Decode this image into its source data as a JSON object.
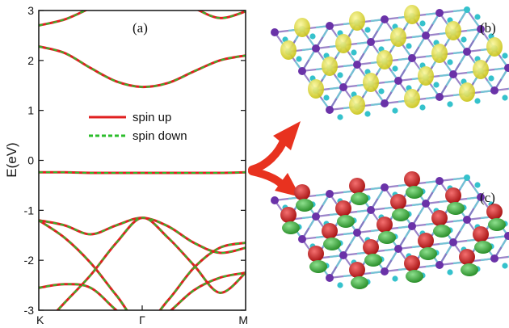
{
  "chart_data": {
    "type": "line",
    "panel_label": "(a)",
    "ylabel": "E(eV)",
    "ylim": [
      -3,
      3
    ],
    "yticks": [
      "3",
      "2",
      "1",
      "0",
      "-1",
      "-2",
      "-3"
    ],
    "xticks": [
      "K",
      "Γ",
      "M"
    ],
    "legend": [
      {
        "label": "spin up",
        "color": "#e02020",
        "style": "solid"
      },
      {
        "label": "spin down",
        "color": "#2bbd2b",
        "style": "dashed"
      }
    ],
    "x": [
      0,
      0.125,
      0.25,
      0.375,
      0.5,
      0.625,
      0.75,
      0.875,
      1
    ],
    "bands": [
      {
        "y": [
          2.28,
          2.15,
          1.85,
          1.58,
          1.47,
          1.55,
          1.78,
          2.0,
          2.1
        ]
      },
      {
        "y": [
          2.7,
          2.82,
          3.05,
          3.3,
          3.4,
          3.3,
          3.05,
          2.85,
          2.98
        ]
      },
      {
        "y": [
          -0.24,
          -0.24,
          -0.25,
          -0.25,
          -0.25,
          -0.25,
          -0.25,
          -0.25,
          -0.24
        ]
      },
      {
        "y": [
          -1.2,
          -1.3,
          -1.48,
          -1.3,
          -1.15,
          -1.32,
          -1.65,
          -1.85,
          -1.75
        ]
      },
      {
        "y": [
          -1.2,
          -1.55,
          -2.05,
          -2.7,
          -3.3,
          -2.8,
          -2.15,
          -1.75,
          -1.65
        ]
      },
      {
        "y": [
          -3.4,
          -2.85,
          -2.3,
          -1.65,
          -1.15,
          -1.55,
          -2.1,
          -2.65,
          -2.25
        ]
      },
      {
        "y": [
          -2.55,
          -2.48,
          -2.55,
          -3.0,
          -3.4,
          -3.05,
          -2.6,
          -2.35,
          -2.25
        ]
      }
    ]
  },
  "panels": {
    "b_label": "(b)",
    "c_label": "(c)"
  },
  "colors": {
    "atom_purple": "#6a32a8",
    "atom_cyan": "#35c2cc",
    "yellow_density": "#e4e23a",
    "red_density": "#d42a2a",
    "green_density": "#3cb33c",
    "arrow": "#e8321f"
  }
}
